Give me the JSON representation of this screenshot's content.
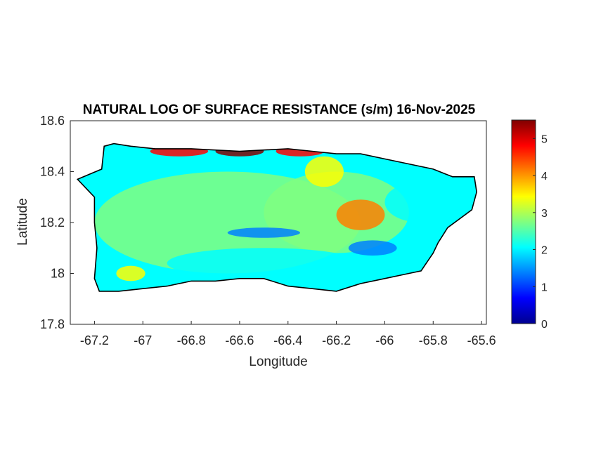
{
  "chart_data": {
    "type": "heatmap",
    "title": "NATURAL LOG OF SURFACE RESISTANCE (s/m) 16-Nov-2025",
    "xlabel": "Longitude",
    "ylabel": "Latitude",
    "xlim": [
      -67.3,
      -65.58
    ],
    "ylim": [
      17.8,
      18.6
    ],
    "xticks": [
      -67.2,
      -67,
      -66.8,
      -66.6,
      -66.4,
      -66.2,
      -66,
      -65.8,
      -65.6
    ],
    "xtick_labels": [
      "-67.2",
      "-67",
      "-66.8",
      "-66.6",
      "-66.4",
      "-66.2",
      "-66",
      "-65.8",
      "-65.6"
    ],
    "yticks": [
      17.8,
      18,
      18.2,
      18.4,
      18.6
    ],
    "ytick_labels": [
      "17.8",
      "18",
      "18.2",
      "18.4",
      "18.6"
    ],
    "colorbar": {
      "colormap": "jet",
      "range": [
        0,
        5.5
      ],
      "ticks": [
        0,
        1,
        2,
        3,
        4,
        5
      ],
      "tick_labels": [
        "0",
        "1",
        "2",
        "3",
        "4",
        "5"
      ],
      "colors": [
        "#00008f",
        "#0000ff",
        "#0080ff",
        "#00ffff",
        "#80ff80",
        "#ffff00",
        "#ff8000",
        "#ff0000",
        "#800000"
      ]
    },
    "island_outline": [
      [
        -67.27,
        18.37
      ],
      [
        -67.22,
        18.39
      ],
      [
        -67.17,
        18.41
      ],
      [
        -67.16,
        18.5
      ],
      [
        -67.12,
        18.51
      ],
      [
        -67.05,
        18.5
      ],
      [
        -66.95,
        18.49
      ],
      [
        -66.8,
        18.49
      ],
      [
        -66.6,
        18.48
      ],
      [
        -66.4,
        18.49
      ],
      [
        -66.3,
        18.48
      ],
      [
        -66.2,
        18.47
      ],
      [
        -66.1,
        18.47
      ],
      [
        -66.0,
        18.45
      ],
      [
        -65.9,
        18.43
      ],
      [
        -65.8,
        18.41
      ],
      [
        -65.72,
        18.38
      ],
      [
        -65.63,
        18.38
      ],
      [
        -65.62,
        18.32
      ],
      [
        -65.64,
        18.25
      ],
      [
        -65.74,
        18.18
      ],
      [
        -65.78,
        18.12
      ],
      [
        -65.8,
        18.08
      ],
      [
        -65.85,
        18.01
      ],
      [
        -65.9,
        18.0
      ],
      [
        -66.0,
        17.98
      ],
      [
        -66.1,
        17.96
      ],
      [
        -66.2,
        17.93
      ],
      [
        -66.3,
        17.94
      ],
      [
        -66.4,
        17.95
      ],
      [
        -66.5,
        17.98
      ],
      [
        -66.6,
        17.98
      ],
      [
        -66.7,
        17.97
      ],
      [
        -66.8,
        17.97
      ],
      [
        -66.9,
        17.95
      ],
      [
        -67.0,
        17.94
      ],
      [
        -67.1,
        17.93
      ],
      [
        -67.18,
        17.93
      ],
      [
        -67.2,
        17.98
      ],
      [
        -67.19,
        18.1
      ],
      [
        -67.2,
        18.2
      ],
      [
        -67.2,
        18.3
      ],
      [
        -67.27,
        18.37
      ]
    ],
    "value_regions": [
      {
        "lon": -66.65,
        "lat": 18.2,
        "value": 2.5,
        "rx": 0.55,
        "ry": 0.2
      },
      {
        "lon": -66.2,
        "lat": 18.24,
        "value": 2.6,
        "rx": 0.3,
        "ry": 0.16
      },
      {
        "lon": -66.85,
        "lat": 18.48,
        "value": 4.9,
        "rx": 0.12,
        "ry": 0.02
      },
      {
        "lon": -66.6,
        "lat": 18.48,
        "value": 5.3,
        "rx": 0.1,
        "ry": 0.02
      },
      {
        "lon": -66.35,
        "lat": 18.48,
        "value": 4.8,
        "rx": 0.1,
        "ry": 0.02
      },
      {
        "lon": -66.1,
        "lat": 18.23,
        "value": 4.2,
        "rx": 0.1,
        "ry": 0.06
      },
      {
        "lon": -66.25,
        "lat": 18.4,
        "value": 3.3,
        "rx": 0.08,
        "ry": 0.06
      },
      {
        "lon": -66.5,
        "lat": 18.16,
        "value": 1.2,
        "rx": 0.15,
        "ry": 0.02
      },
      {
        "lon": -66.05,
        "lat": 18.1,
        "value": 1.4,
        "rx": 0.1,
        "ry": 0.03
      },
      {
        "lon": -67.05,
        "lat": 18.0,
        "value": 3.2,
        "rx": 0.06,
        "ry": 0.03
      },
      {
        "lon": -66.5,
        "lat": 18.04,
        "value": 2.3,
        "rx": 0.4,
        "ry": 0.06
      },
      {
        "lon": -65.85,
        "lat": 18.28,
        "value": 2.2,
        "rx": 0.15,
        "ry": 0.08
      }
    ]
  }
}
